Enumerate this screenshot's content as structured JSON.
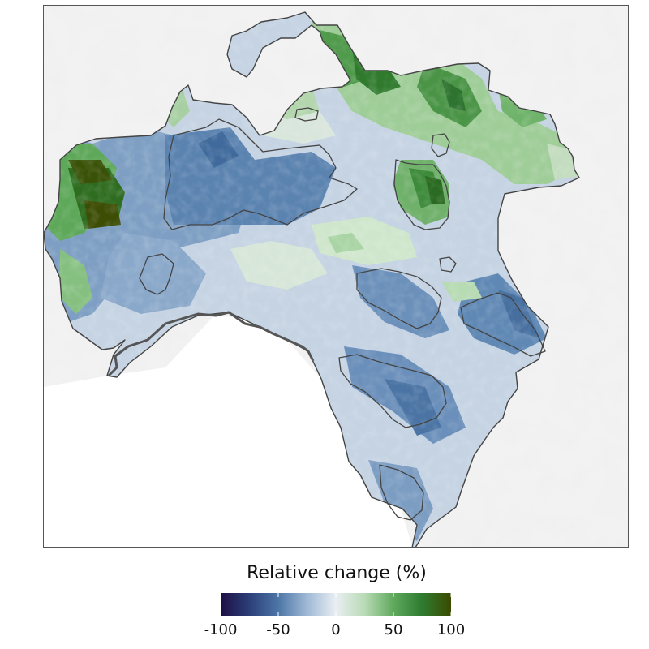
{
  "map": {
    "title": "",
    "background_color": "#ffffff",
    "relief_color": "#e6e6e6",
    "outline_color": "#444444"
  },
  "legend": {
    "title": "Relative change (%)",
    "ticks": [
      "-100",
      "-50",
      "0",
      "50",
      "100"
    ],
    "tick_values": [
      -100,
      -50,
      0,
      50,
      100
    ],
    "range": [
      -100,
      100
    ],
    "colors": [
      "#1e0f45",
      "#2b3f79",
      "#4d76a7",
      "#9fb9d5",
      "#e9eef3",
      "#b9dbb5",
      "#5fa95d",
      "#2e7b30",
      "#3b4a00"
    ]
  }
}
